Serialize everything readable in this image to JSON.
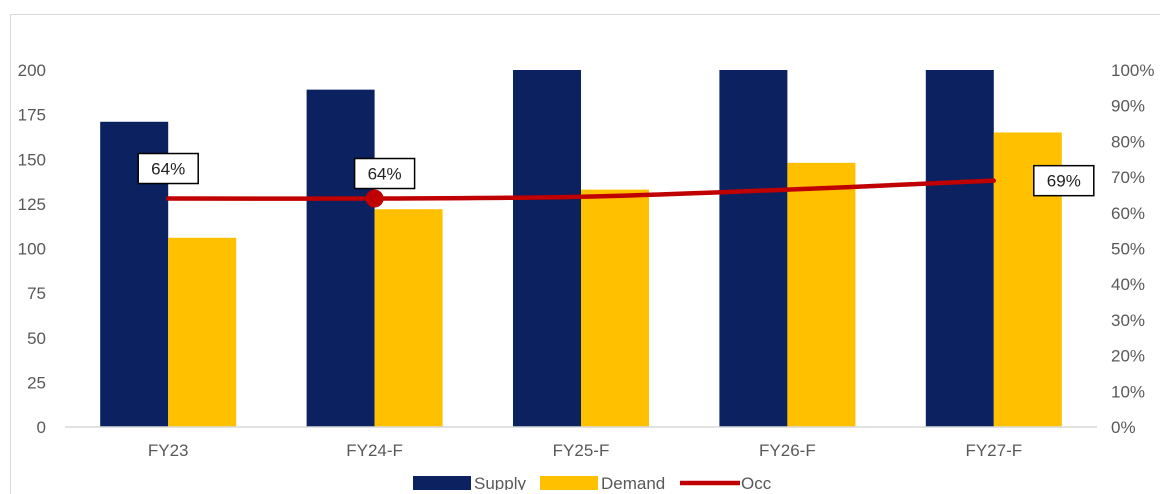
{
  "chart_data": {
    "type": "bar",
    "categories": [
      "FY23",
      "FY24-F",
      "FY25-F",
      "FY26-F",
      "FY27-F"
    ],
    "series": [
      {
        "name": "Supply",
        "type": "bar",
        "axis": "left",
        "values": [
          171,
          189,
          200,
          200,
          200
        ]
      },
      {
        "name": "Demand",
        "type": "bar",
        "axis": "left",
        "values": [
          106,
          122,
          133,
          148,
          165
        ]
      },
      {
        "name": "Occ",
        "type": "line",
        "axis": "right",
        "values": [
          0.64,
          0.64,
          0.645,
          0.665,
          0.69
        ],
        "marker_index": 1
      }
    ],
    "data_labels": [
      {
        "category_index": 0,
        "text": "64%"
      },
      {
        "category_index": 1,
        "text": "64%"
      },
      {
        "category_index": 4,
        "text": "69%"
      }
    ],
    "y_left": {
      "lim": [
        0,
        200
      ],
      "ticks": [
        "0",
        "25",
        "50",
        "75",
        "100",
        "125",
        "150",
        "175",
        "200"
      ]
    },
    "y_right": {
      "lim": [
        0,
        1
      ],
      "ticks": [
        "0%",
        "10%",
        "20%",
        "30%",
        "40%",
        "50%",
        "60%",
        "70%",
        "80%",
        "90%",
        "100%"
      ]
    },
    "grid": false,
    "legend": {
      "position": "bottom",
      "entries": [
        "Supply",
        "Demand",
        "Occ"
      ]
    },
    "title": "",
    "xlabel": "",
    "ylabel": ""
  },
  "colors": {
    "supply": "#0b2160",
    "demand": "#ffc000",
    "occ": "#c00000",
    "axis": "#d9d9d9",
    "text": "#595959"
  }
}
